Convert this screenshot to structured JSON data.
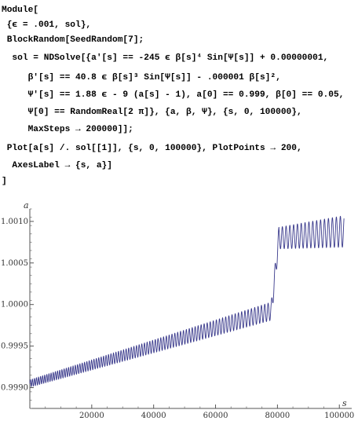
{
  "code": {
    "lines": [
      "Module[",
      " {ϵ = .001, sol},",
      " BlockRandom[SeedRandom[7];",
      "  sol = NDSolve[{a'[s] == -245 ϵ β[s]⁴ Sin[Ψ[s]] + 0.00000001,",
      "     β'[s] == 40.8 ϵ β[s]³ Sin[Ψ[s]] - .000001 β[s]²,",
      "     Ψ'[s] == 1.88 ϵ - 9 (a[s] - 1), a[0] == 0.999, β[0] == 0.05,",
      "     Ψ[0] == RandomReal[2 π]}, {a, β, Ψ}, {s, 0, 100000},",
      "     MaxSteps → 200000]];",
      " Plot[a[s] /. sol[[1]], {s, 0, 100000}, PlotPoints → 200,",
      "  AxesLabel → {s, a}]",
      "]"
    ]
  },
  "chart_data": {
    "type": "line",
    "xlabel": "s",
    "ylabel": "a",
    "xlim": [
      0,
      104000
    ],
    "ylim": [
      0.99875,
      1.00115
    ],
    "x_ticks": [
      20000,
      40000,
      60000,
      80000,
      100000
    ],
    "x_tick_labels": [
      "20000",
      "40000",
      "60000",
      "80000",
      "100000"
    ],
    "y_ticks": [
      0.999,
      0.9995,
      1.0,
      1.0005,
      1.001
    ],
    "y_tick_labels": [
      "0.9990",
      "0.9995",
      "1.0000",
      "1.0005",
      "1.0010"
    ],
    "series": [
      {
        "color": "#3a3a8c",
        "segments": [
          {
            "x_start": 0,
            "x_end": 78000,
            "mean_start": 0.99905,
            "mean_end": 0.99992,
            "amplitude_start": 4.5e-05,
            "amplitude_end": 0.00011,
            "period_start": 650,
            "period_end": 1100
          },
          {
            "x_start": 78000,
            "x_end": 80500,
            "mean_start": 0.99992,
            "mean_end": 1.00082,
            "amplitude_start": 0.00011,
            "amplitude_end": 0.00013,
            "period_start": 1100,
            "period_end": 1200
          },
          {
            "x_start": 80500,
            "x_end": 101500,
            "mean_start": 1.0008,
            "mean_end": 1.00088,
            "amplitude_start": 0.00013,
            "amplitude_end": 0.00019,
            "period_start": 1200,
            "period_end": 1300
          }
        ]
      }
    ]
  }
}
